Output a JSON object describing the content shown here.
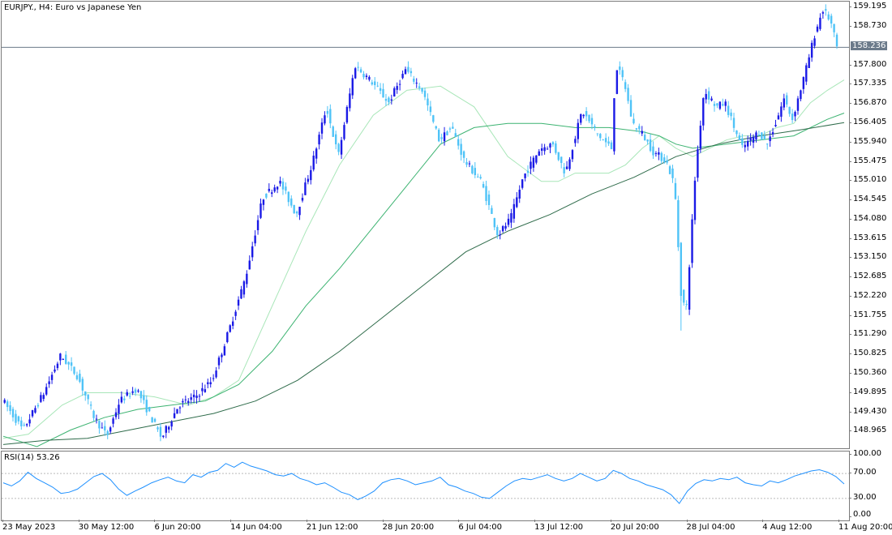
{
  "chart": {
    "symbol_title": "EURJPY., H4:  Euro vs Japanese Yen",
    "current_price_label": "158.236",
    "rsi_title": "RSI(14) 53.26"
  },
  "colors": {
    "bull_candle": "#1a1ae6",
    "bear_candle": "#4fc3f7",
    "ma_fast": "#a8e6b8",
    "ma_mid": "#3cb371",
    "ma_slow": "#2e6b4a",
    "rsi_line": "#1e90ff",
    "price_line": "#6b7a8a"
  },
  "chart_data": [
    {
      "type": "candlestick",
      "title": "EURJPY., H4:  Euro vs Japanese Yen",
      "y_ticks": [
        "159.195",
        "158.730",
        "157.800",
        "157.335",
        "156.870",
        "156.405",
        "155.940",
        "155.475",
        "155.010",
        "154.545",
        "154.080",
        "153.615",
        "153.150",
        "152.685",
        "152.220",
        "151.755",
        "151.290",
        "150.825",
        "150.360",
        "149.895",
        "149.430",
        "148.965"
      ],
      "x_ticks": [
        "23 May 2023",
        "30 May 12:00",
        "6 Jun 20:00",
        "14 Jun 04:00",
        "21 Jun 12:00",
        "28 Jun 20:00",
        "6 Jul 04:00",
        "13 Jul 12:00",
        "20 Jul 20:00",
        "28 Jul 04:00",
        "4 Aug 12:00",
        "11 Aug 20:00"
      ],
      "ylim": [
        148.56,
        159.34
      ],
      "current_price": 158.236,
      "price_path": [
        [
          0,
          149.75
        ],
        [
          2.5,
          149.0
        ],
        [
          5,
          149.9
        ],
        [
          7,
          150.8
        ],
        [
          9,
          150.3
        ],
        [
          11,
          149.3
        ],
        [
          12.5,
          148.85
        ],
        [
          14,
          149.7
        ],
        [
          16,
          150.0
        ],
        [
          18,
          149.2
        ],
        [
          19,
          148.8
        ],
        [
          21,
          149.6
        ],
        [
          23,
          149.8
        ],
        [
          25,
          150.2
        ],
        [
          27,
          151.4
        ],
        [
          29,
          152.7
        ],
        [
          31,
          154.6
        ],
        [
          33,
          155.0
        ],
        [
          35,
          154.2
        ],
        [
          37,
          155.5
        ],
        [
          38.6,
          156.8
        ],
        [
          40,
          155.6
        ],
        [
          42,
          157.8
        ],
        [
          44,
          157.4
        ],
        [
          46,
          156.9
        ],
        [
          48,
          157.7
        ],
        [
          50,
          157.2
        ],
        [
          52,
          156.0
        ],
        [
          53.5,
          156.3
        ],
        [
          55,
          155.5
        ],
        [
          57,
          155.0
        ],
        [
          59,
          153.7
        ],
        [
          60.5,
          154.1
        ],
        [
          62,
          155.1
        ],
        [
          64,
          155.8
        ],
        [
          65.5,
          155.9
        ],
        [
          67,
          155.2
        ],
        [
          69,
          156.7
        ],
        [
          71,
          156.1
        ],
        [
          72.5,
          155.8
        ],
        [
          73,
          157.8
        ],
        [
          74,
          157.4
        ],
        [
          75,
          156.4
        ],
        [
          76,
          156.2
        ],
        [
          77.5,
          155.7
        ],
        [
          79,
          155.5
        ],
        [
          80,
          154.9
        ],
        [
          80.8,
          152.2
        ],
        [
          81.4,
          151.9
        ],
        [
          82.5,
          155.3
        ],
        [
          83.5,
          157.2
        ],
        [
          85,
          156.8
        ],
        [
          86,
          156.9
        ],
        [
          88,
          155.8
        ],
        [
          90,
          156.2
        ],
        [
          91,
          155.9
        ],
        [
          92,
          156.4
        ],
        [
          93,
          157.0
        ],
        [
          94,
          156.5
        ],
        [
          95.5,
          157.6
        ],
        [
          96.6,
          158.5
        ],
        [
          97.6,
          159.15
        ],
        [
          98.5,
          158.9
        ],
        [
          99.3,
          158.24
        ]
      ],
      "moving_averages": {
        "fast": [
          [
            0,
            148.8
          ],
          [
            3,
            148.9
          ],
          [
            7,
            149.6
          ],
          [
            10,
            149.9
          ],
          [
            14,
            149.9
          ],
          [
            18,
            149.8
          ],
          [
            22,
            149.6
          ],
          [
            25,
            149.8
          ],
          [
            28,
            150.2
          ],
          [
            32,
            152.0
          ],
          [
            36,
            153.8
          ],
          [
            40,
            155.4
          ],
          [
            44,
            156.6
          ],
          [
            48,
            157.2
          ],
          [
            52,
            157.3
          ],
          [
            56,
            156.8
          ],
          [
            60,
            155.6
          ],
          [
            64,
            155.0
          ],
          [
            66,
            155.0
          ],
          [
            68,
            155.2
          ],
          [
            70,
            155.2
          ],
          [
            72,
            155.2
          ],
          [
            74,
            155.4
          ],
          [
            76,
            155.8
          ],
          [
            78,
            156.1
          ],
          [
            80,
            155.8
          ],
          [
            82,
            155.6
          ],
          [
            84,
            155.8
          ],
          [
            86,
            156.0
          ],
          [
            88,
            156.1
          ],
          [
            90,
            156.1
          ],
          [
            92,
            156.3
          ],
          [
            94,
            156.4
          ],
          [
            96,
            156.9
          ],
          [
            98,
            157.2
          ],
          [
            100,
            157.45
          ]
        ],
        "mid": [
          [
            0,
            148.85
          ],
          [
            4,
            148.6
          ],
          [
            8,
            149.0
          ],
          [
            12,
            149.3
          ],
          [
            16,
            149.5
          ],
          [
            20,
            149.6
          ],
          [
            24,
            149.7
          ],
          [
            28,
            150.1
          ],
          [
            32,
            150.9
          ],
          [
            36,
            152.0
          ],
          [
            40,
            152.9
          ],
          [
            44,
            153.9
          ],
          [
            48,
            154.9
          ],
          [
            52,
            155.9
          ],
          [
            56,
            156.3
          ],
          [
            60,
            156.4
          ],
          [
            64,
            156.4
          ],
          [
            68,
            156.3
          ],
          [
            72,
            156.3
          ],
          [
            76,
            156.2
          ],
          [
            78,
            156.1
          ],
          [
            80,
            155.9
          ],
          [
            82,
            155.8
          ],
          [
            86,
            155.9
          ],
          [
            90,
            156.0
          ],
          [
            94,
            156.1
          ],
          [
            98,
            156.5
          ],
          [
            100,
            156.65
          ]
        ],
        "slow": [
          [
            0,
            148.65
          ],
          [
            5,
            148.75
          ],
          [
            10,
            148.8
          ],
          [
            15,
            149.0
          ],
          [
            20,
            149.2
          ],
          [
            25,
            149.4
          ],
          [
            30,
            149.7
          ],
          [
            35,
            150.2
          ],
          [
            40,
            150.9
          ],
          [
            45,
            151.7
          ],
          [
            50,
            152.5
          ],
          [
            55,
            153.3
          ],
          [
            60,
            153.8
          ],
          [
            65,
            154.2
          ],
          [
            70,
            154.7
          ],
          [
            75,
            155.1
          ],
          [
            80,
            155.6
          ],
          [
            85,
            155.9
          ],
          [
            90,
            156.1
          ],
          [
            95,
            156.25
          ],
          [
            100,
            156.42
          ]
        ]
      }
    },
    {
      "type": "line",
      "title": "RSI(14) 53.26",
      "y_ticks": [
        "100.00",
        "70.00",
        "30.00",
        "0.00"
      ],
      "ylim": [
        0,
        100
      ],
      "levels": [
        70,
        30
      ],
      "last_value": 53.26,
      "series": [
        {
          "values": [
            [
              0,
              55
            ],
            [
              2,
              50
            ],
            [
              4,
              58
            ],
            [
              6,
              72
            ],
            [
              8,
              62
            ],
            [
              10,
              55
            ],
            [
              12,
              48
            ],
            [
              14,
              38
            ],
            [
              16,
              40
            ],
            [
              18,
              45
            ],
            [
              20,
              55
            ],
            [
              22,
              65
            ],
            [
              24,
              70
            ],
            [
              26,
              60
            ],
            [
              28,
              45
            ],
            [
              30,
              35
            ],
            [
              32,
              42
            ],
            [
              34,
              48
            ],
            [
              36,
              55
            ],
            [
              38,
              60
            ],
            [
              40,
              64
            ],
            [
              42,
              58
            ],
            [
              44,
              55
            ],
            [
              46,
              68
            ],
            [
              48,
              64
            ],
            [
              50,
              72
            ],
            [
              52,
              75
            ],
            [
              54,
              86
            ],
            [
              56,
              80
            ],
            [
              58,
              88
            ],
            [
              60,
              82
            ],
            [
              62,
              78
            ],
            [
              64,
              74
            ],
            [
              66,
              68
            ],
            [
              68,
              66
            ],
            [
              70,
              70
            ],
            [
              72,
              62
            ],
            [
              74,
              58
            ],
            [
              76,
              52
            ],
            [
              78,
              55
            ],
            [
              80,
              48
            ],
            [
              82,
              40
            ],
            [
              84,
              36
            ],
            [
              86,
              28
            ],
            [
              88,
              34
            ],
            [
              90,
              42
            ],
            [
              92,
              55
            ],
            [
              94,
              60
            ],
            [
              96,
              62
            ],
            [
              98,
              58
            ],
            [
              100,
              52
            ],
            [
              102,
              55
            ],
            [
              104,
              58
            ],
            [
              106,
              64
            ],
            [
              108,
              52
            ],
            [
              110,
              48
            ],
            [
              112,
              42
            ],
            [
              114,
              38
            ],
            [
              116,
              32
            ],
            [
              118,
              30
            ],
            [
              120,
              40
            ],
            [
              122,
              50
            ],
            [
              124,
              58
            ],
            [
              126,
              62
            ],
            [
              128,
              60
            ],
            [
              130,
              64
            ],
            [
              132,
              68
            ],
            [
              134,
              62
            ],
            [
              136,
              58
            ],
            [
              138,
              62
            ],
            [
              140,
              70
            ],
            [
              142,
              64
            ],
            [
              144,
              58
            ],
            [
              146,
              62
            ],
            [
              148,
              75
            ],
            [
              150,
              70
            ],
            [
              152,
              62
            ],
            [
              154,
              58
            ],
            [
              156,
              52
            ],
            [
              158,
              48
            ],
            [
              160,
              44
            ],
            [
              162,
              36
            ],
            [
              164,
              22
            ],
            [
              166,
              42
            ],
            [
              168,
              54
            ],
            [
              170,
              60
            ],
            [
              172,
              58
            ],
            [
              174,
              62
            ],
            [
              176,
              60
            ],
            [
              178,
              64
            ],
            [
              180,
              55
            ],
            [
              182,
              52
            ],
            [
              184,
              50
            ],
            [
              186,
              58
            ],
            [
              188,
              55
            ],
            [
              190,
              60
            ],
            [
              192,
              66
            ],
            [
              194,
              70
            ],
            [
              196,
              74
            ],
            [
              198,
              76
            ],
            [
              200,
              72
            ],
            [
              202,
              65
            ],
            [
              204,
              53.26
            ]
          ]
        }
      ]
    }
  ]
}
